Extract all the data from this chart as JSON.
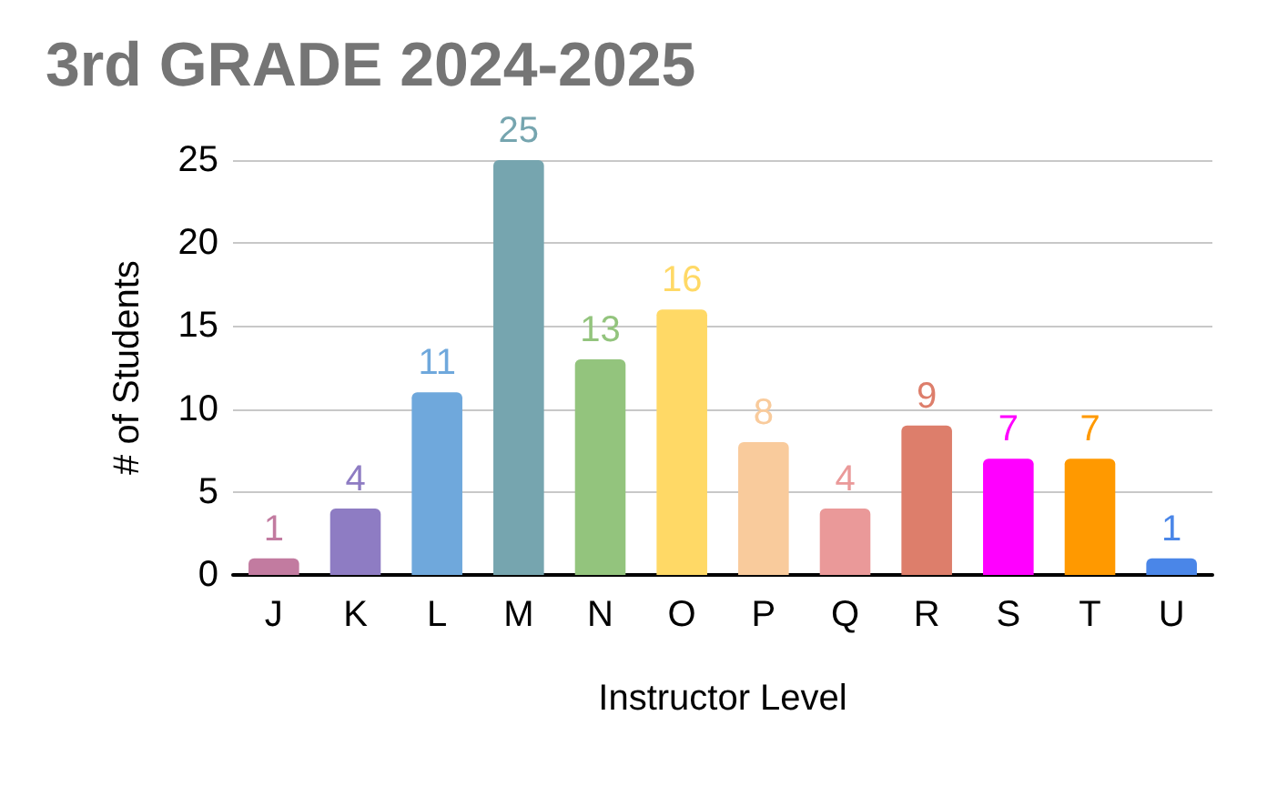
{
  "chart_data": {
    "type": "bar",
    "title": "3rd GRADE 2024-2025",
    "xlabel": "Instructor Level",
    "ylabel": "# of Students",
    "categories": [
      "J",
      "K",
      "L",
      "M",
      "N",
      "O",
      "P",
      "Q",
      "R",
      "S",
      "T",
      "U"
    ],
    "values": [
      1,
      4,
      11,
      25,
      13,
      16,
      8,
      4,
      9,
      7,
      7,
      1
    ],
    "colors": [
      "#c27ba0",
      "#8e7cc3",
      "#6fa8dc",
      "#76a5af",
      "#93c47d",
      "#ffd966",
      "#f9cb9c",
      "#ea9999",
      "#dd7e6b",
      "#ff00ff",
      "#ff9900",
      "#4a86e8"
    ],
    "ylim": [
      0,
      25
    ],
    "yticks": [
      0,
      5,
      10,
      15,
      20,
      25
    ],
    "grid": true,
    "data_labels": true
  }
}
